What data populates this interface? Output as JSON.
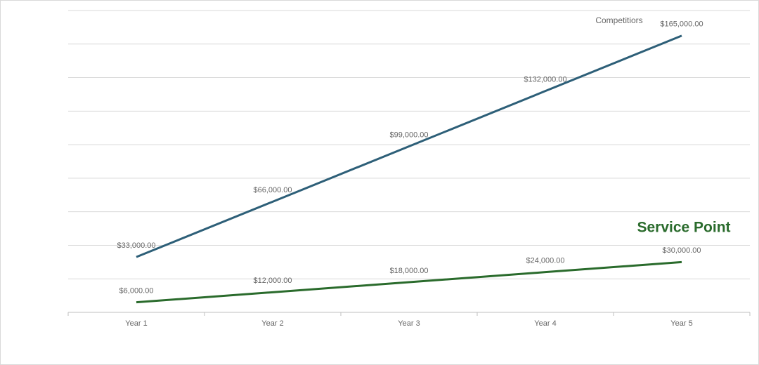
{
  "chart_data": {
    "type": "line",
    "categories": [
      "Year 1",
      "Year 2",
      "Year 3",
      "Year 4",
      "Year 5"
    ],
    "series": [
      {
        "name": "Competitiors",
        "color": "#2d5f78",
        "values": [
          33000,
          66000,
          99000,
          132000,
          165000
        ],
        "value_labels": [
          "$33,000.00",
          "$66,000.00",
          "$99,000.00",
          "$132,000.00",
          "$165,000.00"
        ]
      },
      {
        "name": "Service Point",
        "color": "#2a6b2c",
        "values": [
          6000,
          12000,
          18000,
          24000,
          30000
        ],
        "value_labels": [
          "$6,000.00",
          "$12,000.00",
          "$18,000.00",
          "$24,000.00",
          "$30,000.00"
        ]
      }
    ],
    "ylim": [
      0,
      180000
    ],
    "yticks": [
      0,
      20000,
      40000,
      60000,
      80000,
      100000,
      120000,
      140000,
      160000,
      180000
    ],
    "show_ytick_labels": false,
    "grid": true
  }
}
